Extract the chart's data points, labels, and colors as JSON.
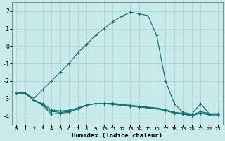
{
  "xlabel": "Humidex (Indice chaleur)",
  "background_color": "#c8eaea",
  "grid_color": "#b0d8d8",
  "line_color": "#1a7070",
  "ylim": [
    -4.5,
    2.5
  ],
  "xlim": [
    -0.5,
    23.5
  ],
  "yticks": [
    -4,
    -3,
    -2,
    -1,
    0,
    1,
    2
  ],
  "x_ticks": [
    0,
    1,
    2,
    3,
    4,
    5,
    6,
    7,
    8,
    9,
    10,
    11,
    12,
    13,
    14,
    15,
    16,
    17,
    18,
    19,
    20,
    21,
    22,
    23
  ],
  "series": [
    {
      "x": [
        0,
        1,
        2,
        3,
        4,
        5,
        6,
        7,
        8,
        9,
        10,
        11,
        12,
        13,
        14,
        15,
        16,
        17,
        18,
        19,
        20,
        21,
        22,
        23
      ],
      "y": [
        -2.7,
        -2.7,
        -3.0,
        -2.5,
        -2.0,
        -1.5,
        -1.0,
        -0.4,
        0.1,
        0.6,
        1.0,
        1.4,
        1.7,
        1.95,
        1.85,
        1.75,
        0.6,
        -2.0,
        -3.3,
        -3.8,
        -3.9,
        -3.3,
        -3.9,
        -3.9
      ]
    },
    {
      "x": [
        0,
        1,
        2,
        3,
        4,
        5,
        6,
        7,
        8,
        9,
        10,
        11,
        12,
        13,
        14,
        15,
        16,
        17,
        18,
        19,
        20,
        21,
        22,
        23
      ],
      "y": [
        -2.7,
        -2.7,
        -3.1,
        -3.4,
        -3.9,
        -3.85,
        -3.8,
        -3.6,
        -3.4,
        -3.3,
        -3.3,
        -3.35,
        -3.4,
        -3.45,
        -3.5,
        -3.55,
        -3.6,
        -3.7,
        -3.85,
        -3.9,
        -4.0,
        -3.85,
        -3.95,
        -3.95
      ]
    },
    {
      "x": [
        0,
        1,
        2,
        3,
        4,
        5,
        6,
        7,
        8,
        9,
        10,
        11,
        12,
        13,
        14,
        15,
        16,
        17,
        18,
        19,
        20,
        21,
        22,
        23
      ],
      "y": [
        -2.7,
        -2.7,
        -3.1,
        -3.35,
        -3.75,
        -3.8,
        -3.75,
        -3.6,
        -3.4,
        -3.3,
        -3.3,
        -3.3,
        -3.38,
        -3.42,
        -3.48,
        -3.52,
        -3.58,
        -3.68,
        -3.82,
        -3.88,
        -3.98,
        -3.82,
        -3.92,
        -3.92
      ]
    },
    {
      "x": [
        0,
        1,
        2,
        3,
        4,
        5,
        6,
        7,
        8,
        9,
        10,
        11,
        12,
        13,
        14,
        15,
        16,
        17,
        18,
        19,
        20,
        21,
        22,
        23
      ],
      "y": [
        -2.7,
        -2.7,
        -3.1,
        -3.3,
        -3.65,
        -3.72,
        -3.68,
        -3.55,
        -3.38,
        -3.3,
        -3.3,
        -3.28,
        -3.35,
        -3.4,
        -3.45,
        -3.5,
        -3.55,
        -3.65,
        -3.8,
        -3.85,
        -3.95,
        -3.75,
        -3.88,
        -3.88
      ]
    }
  ]
}
